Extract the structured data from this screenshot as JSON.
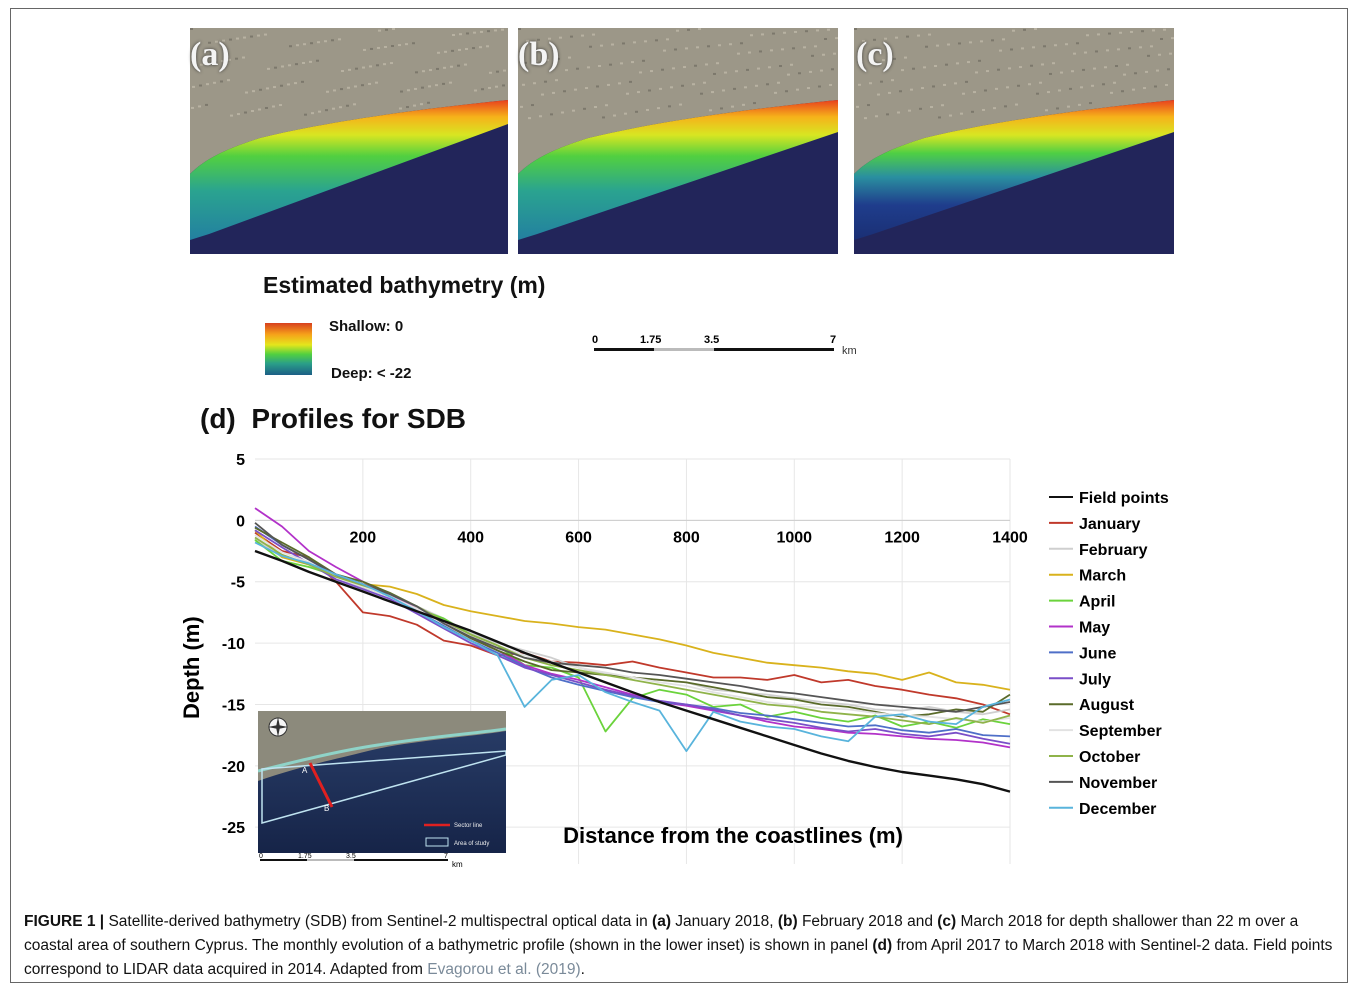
{
  "panels": [
    {
      "letter": "(a)"
    },
    {
      "letter": "(b)"
    },
    {
      "letter": "(c)"
    }
  ],
  "legend": {
    "title": "Estimated bathymetry (m)",
    "shallow": "Shallow: 0",
    "deep": "Deep: < -22",
    "colors": [
      "#d8401e",
      "#f6a21a",
      "#e4e61c",
      "#52d040",
      "#2a9f88",
      "#1c5f86"
    ]
  },
  "scalebar": {
    "ticks": [
      "0",
      "1.75",
      "3.5",
      "7"
    ],
    "unit": "km"
  },
  "panel_d_title": "Profiles for SDB",
  "panel_d_letter": "(d)",
  "inset": {
    "point_a": "A",
    "point_b": "B",
    "legend_sector": "Sector line",
    "legend_area": "Area of study",
    "ticks": [
      "0",
      "1.75",
      "3.5",
      "7"
    ],
    "unit": "km"
  },
  "chart_data": {
    "type": "line",
    "xlabel": "Distance from the coastlines (m)",
    "ylabel": "Depth (m)",
    "xlim": [
      0,
      1400
    ],
    "ylim": [
      -28,
      5
    ],
    "x_ticks": [
      "200",
      "400",
      "600",
      "800",
      "1000",
      "1200",
      "1400"
    ],
    "y_ticks": [
      "5",
      "0",
      "-5",
      "-10",
      "-15",
      "-20",
      "-25"
    ],
    "x": [
      0,
      50,
      100,
      150,
      200,
      250,
      300,
      350,
      400,
      450,
      500,
      550,
      600,
      650,
      700,
      750,
      800,
      850,
      900,
      950,
      1000,
      1050,
      1100,
      1150,
      1200,
      1250,
      1300,
      1350,
      1400
    ],
    "series": [
      {
        "name": "Field points",
        "color": "#111111",
        "values": [
          -2.5,
          -3.3,
          -4.2,
          -5.0,
          -5.8,
          -6.6,
          -7.4,
          -8.2,
          -9.0,
          -9.9,
          -10.8,
          -11.6,
          -12.4,
          -13.2,
          -14.0,
          -14.8,
          -15.5,
          -16.2,
          -16.9,
          -17.6,
          -18.3,
          -19.0,
          -19.6,
          -20.1,
          -20.5,
          -20.8,
          -21.1,
          -21.5,
          -22.1
        ]
      },
      {
        "name": "January",
        "color": "#c0392b",
        "values": [
          -1.0,
          -2.5,
          -3.0,
          -5.0,
          -7.5,
          -7.8,
          -8.5,
          -9.8,
          -10.2,
          -11.0,
          -10.8,
          -11.5,
          -11.6,
          -11.8,
          -11.5,
          -12.0,
          -12.4,
          -12.8,
          -12.8,
          -13.0,
          -12.6,
          -13.2,
          -13.0,
          -13.5,
          -13.8,
          -14.2,
          -14.5,
          -15.0,
          -15.8
        ]
      },
      {
        "name": "February",
        "color": "#cfcfcf",
        "values": [
          -1.5,
          -3.0,
          -3.5,
          -4.8,
          -5.5,
          -6.0,
          -7.0,
          -8.0,
          -9.2,
          -10.0,
          -10.6,
          -11.2,
          -12.0,
          -12.5,
          -12.8,
          -13.0,
          -13.2,
          -13.8,
          -14.0,
          -14.2,
          -14.5,
          -14.8,
          -15.0,
          -15.4,
          -15.5,
          -15.2,
          -15.6,
          -15.8,
          -15.4
        ]
      },
      {
        "name": "March",
        "color": "#d9b21c",
        "values": [
          -0.8,
          -3.0,
          -3.6,
          -4.5,
          -5.2,
          -5.4,
          -6.0,
          -6.9,
          -7.4,
          -7.8,
          -8.2,
          -8.4,
          -8.7,
          -8.9,
          -9.3,
          -9.7,
          -10.2,
          -10.8,
          -11.2,
          -11.6,
          -11.8,
          -12.0,
          -12.3,
          -12.5,
          -13.0,
          -12.4,
          -13.2,
          -13.4,
          -13.8
        ]
      },
      {
        "name": "April",
        "color": "#6bd33c",
        "values": [
          -1.6,
          -3.3,
          -3.8,
          -4.5,
          -5.4,
          -6.2,
          -7.2,
          -8.0,
          -9.3,
          -10.2,
          -11.8,
          -12.0,
          -12.8,
          -17.2,
          -14.5,
          -13.8,
          -14.2,
          -15.2,
          -15.0,
          -16.0,
          -15.6,
          -16.1,
          -16.4,
          -15.9,
          -16.8,
          -16.4,
          -16.9,
          -16.2,
          -16.6
        ]
      },
      {
        "name": "May",
        "color": "#b232c9",
        "values": [
          1.0,
          -0.5,
          -2.5,
          -3.8,
          -5.0,
          -6.0,
          -7.2,
          -8.2,
          -9.6,
          -10.6,
          -11.8,
          -12.5,
          -13.0,
          -13.6,
          -14.2,
          -14.8,
          -15.1,
          -15.5,
          -15.9,
          -16.4,
          -16.8,
          -17.0,
          -17.3,
          -17.4,
          -17.6,
          -17.8,
          -17.9,
          -18.1,
          -18.5
        ]
      },
      {
        "name": "June",
        "color": "#4f6fc8",
        "values": [
          -0.5,
          -2.0,
          -3.2,
          -4.5,
          -5.2,
          -6.2,
          -7.4,
          -8.6,
          -9.8,
          -10.8,
          -11.9,
          -12.8,
          -13.4,
          -13.9,
          -14.4,
          -14.8,
          -15.0,
          -15.3,
          -15.7,
          -15.9,
          -16.2,
          -16.5,
          -16.8,
          -16.7,
          -17.1,
          -17.3,
          -17.0,
          -17.5,
          -17.6
        ]
      },
      {
        "name": "July",
        "color": "#7a4fc8",
        "values": [
          -0.8,
          -2.2,
          -3.5,
          -4.8,
          -5.6,
          -6.4,
          -7.6,
          -8.8,
          -10.0,
          -11.0,
          -12.0,
          -12.6,
          -13.2,
          -13.8,
          -14.3,
          -14.7,
          -15.0,
          -15.4,
          -15.9,
          -16.2,
          -16.5,
          -16.9,
          -17.2,
          -17.0,
          -17.4,
          -17.6,
          -17.3,
          -17.8,
          -18.2
        ]
      },
      {
        "name": "August",
        "color": "#5a6b2a",
        "values": [
          -0.6,
          -1.8,
          -3.0,
          -4.4,
          -5.0,
          -5.9,
          -7.0,
          -8.4,
          -9.6,
          -10.6,
          -11.5,
          -12.2,
          -12.4,
          -12.6,
          -12.8,
          -13.0,
          -13.2,
          -13.6,
          -14.0,
          -14.4,
          -14.6,
          -15.0,
          -15.2,
          -15.6,
          -16.0,
          -15.8,
          -15.4,
          -15.6,
          -14.2
        ]
      },
      {
        "name": "September",
        "color": "#e2e2e2",
        "values": [
          -1.2,
          -2.6,
          -3.4,
          -4.6,
          -5.4,
          -6.2,
          -7.2,
          -8.4,
          -9.4,
          -10.2,
          -11.0,
          -11.5,
          -12.0,
          -12.4,
          -12.8,
          -13.2,
          -13.5,
          -14.0,
          -14.4,
          -14.8,
          -15.1,
          -15.3,
          -15.4,
          -15.7,
          -15.9,
          -16.0,
          -16.2,
          -16.4,
          -16.1
        ]
      },
      {
        "name": "October",
        "color": "#8fb34a",
        "values": [
          -1.4,
          -2.8,
          -3.6,
          -4.6,
          -5.3,
          -6.0,
          -7.0,
          -8.2,
          -9.3,
          -10.2,
          -11.2,
          -11.8,
          -12.2,
          -12.6,
          -13.0,
          -13.4,
          -13.8,
          -14.2,
          -14.6,
          -15.0,
          -15.2,
          -15.6,
          -15.8,
          -16.0,
          -16.3,
          -16.6,
          -16.1,
          -16.5,
          -15.9
        ]
      },
      {
        "name": "November",
        "color": "#555555",
        "values": [
          -0.2,
          -2.0,
          -3.2,
          -4.4,
          -5.2,
          -6.0,
          -7.0,
          -8.4,
          -9.5,
          -10.4,
          -11.2,
          -11.6,
          -11.8,
          -12.0,
          -12.4,
          -12.6,
          -12.9,
          -13.2,
          -13.5,
          -13.9,
          -14.1,
          -14.4,
          -14.7,
          -15.0,
          -15.2,
          -15.4,
          -15.6,
          -15.2,
          -14.8
        ]
      },
      {
        "name": "December",
        "color": "#59b4dc",
        "values": [
          -1.8,
          -2.9,
          -3.5,
          -4.4,
          -5.2,
          -6.2,
          -7.4,
          -8.7,
          -9.8,
          -11.0,
          -15.2,
          -13.0,
          -12.6,
          -14.0,
          -14.8,
          -15.5,
          -18.8,
          -15.6,
          -16.4,
          -16.8,
          -17.0,
          -17.6,
          -18.0,
          -16.0,
          -15.8,
          -16.4,
          -16.6,
          -15.2,
          -14.6
        ]
      }
    ]
  },
  "caption": {
    "label": "FIGURE 1 |",
    "t1": " Satellite-derived bathymetry (SDB) from Sentinel-2 multispectral optical data in ",
    "a": "(a)",
    "t2": " January 2018, ",
    "b": "(b)",
    "t3": " February 2018 and ",
    "c": "(c)",
    "t4": " March 2018 for depth shallower than 22 m over a coastal area of southern Cyprus. The monthly evolution of a bathymetric profile (shown in the lower inset) is shown in panel ",
    "d": "(d)",
    "t5": " from April 2017 to March 2018 with Sentinel-2 data. Field points correspond to LIDAR data acquired in 2014. Adapted from ",
    "cite": "Evagorou et al. (2019)",
    "t6": "."
  }
}
